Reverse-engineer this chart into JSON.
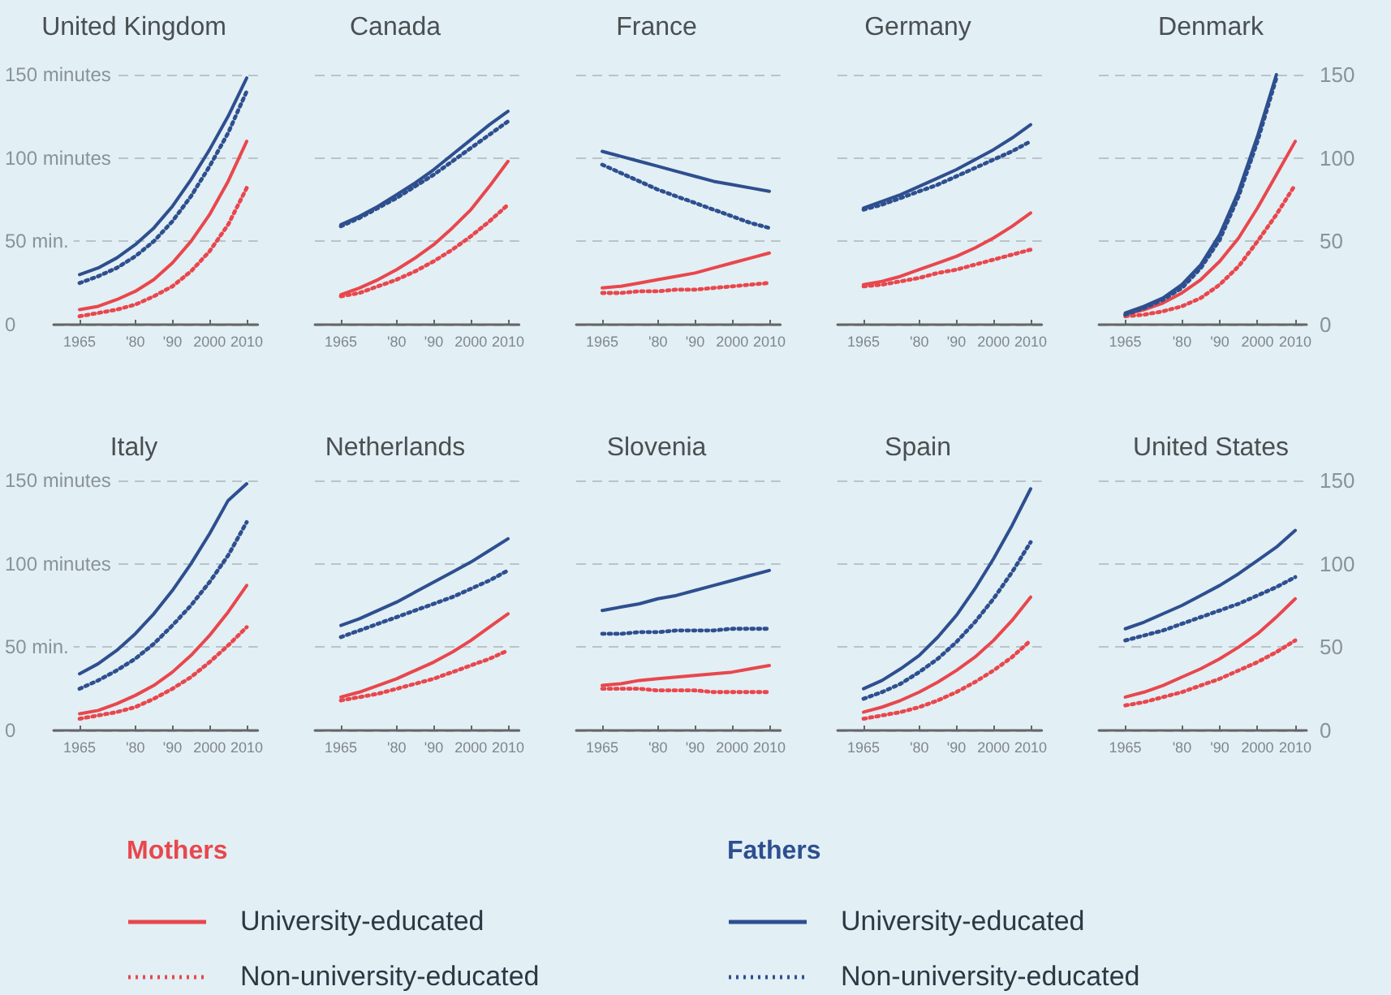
{
  "chart_data": [
    {
      "type": "line",
      "title": "United Kingdom",
      "x": [
        1965,
        1970,
        1975,
        1980,
        1985,
        1990,
        1995,
        2000,
        2005,
        2010
      ],
      "xlim": [
        1958,
        2013
      ],
      "xticks": [
        {
          "value": 1965,
          "label": "1965"
        },
        {
          "value": 1980,
          "label": "'80"
        },
        {
          "value": 1990,
          "label": "'90"
        },
        {
          "value": 2000,
          "label": "2000"
        },
        {
          "value": 2010,
          "label": "2010"
        }
      ],
      "ylim": [
        0,
        150
      ],
      "yticks": [
        0,
        {
          "value": 50,
          "label": "50 min."
        },
        {
          "value": 100,
          "label": "100 minutes"
        },
        {
          "value": 150,
          "label": "150 minutes"
        }
      ],
      "grid": "y",
      "legend": false,
      "marker": "none",
      "series": [
        {
          "color": "#e8474d",
          "line_style": "solid",
          "values": [
            9,
            11,
            15,
            20,
            27,
            37,
            50,
            66,
            86,
            110
          ]
        },
        {
          "color": "#e8474d",
          "line_style": "dotted",
          "values": [
            5,
            7,
            9,
            12,
            17,
            23,
            32,
            44,
            60,
            82
          ]
        },
        {
          "color": "#2e4f8f",
          "line_style": "solid",
          "values": [
            30,
            34,
            40,
            48,
            58,
            71,
            87,
            105,
            125,
            148
          ]
        },
        {
          "color": "#2e4f8f",
          "line_style": "dotted",
          "values": [
            25,
            29,
            34,
            41,
            50,
            62,
            77,
            95,
            115,
            140
          ]
        }
      ]
    },
    {
      "type": "line",
      "title": "Canada",
      "x": [
        1965,
        1970,
        1975,
        1980,
        1985,
        1990,
        1995,
        2000,
        2005,
        2010
      ],
      "xlim": [
        1958,
        2013
      ],
      "xticks": [
        {
          "value": 1965,
          "label": "1965"
        },
        {
          "value": 1980,
          "label": "'80"
        },
        {
          "value": 1990,
          "label": "'90"
        },
        {
          "value": 2000,
          "label": "2000"
        },
        {
          "value": 2010,
          "label": "2010"
        }
      ],
      "ylim": [
        0,
        150
      ],
      "yticks": [
        0,
        50,
        100,
        150
      ],
      "tick_labels": "x",
      "grid": "y",
      "legend": false,
      "marker": "none",
      "series": [
        {
          "color": "#e8474d",
          "line_style": "solid",
          "values": [
            18,
            22,
            27,
            33,
            40,
            48,
            58,
            69,
            83,
            98
          ]
        },
        {
          "color": "#e8474d",
          "line_style": "dotted",
          "values": [
            17,
            19,
            23,
            27,
            32,
            38,
            45,
            53,
            62,
            72
          ]
        },
        {
          "color": "#2e4f8f",
          "line_style": "solid",
          "values": [
            60,
            65,
            71,
            78,
            85,
            93,
            102,
            111,
            120,
            128
          ]
        },
        {
          "color": "#2e4f8f",
          "line_style": "dotted",
          "values": [
            59,
            64,
            70,
            76,
            83,
            90,
            98,
            106,
            114,
            122
          ]
        }
      ]
    },
    {
      "type": "line",
      "title": "France",
      "x": [
        1965,
        1970,
        1975,
        1980,
        1985,
        1990,
        1995,
        2000,
        2005,
        2010
      ],
      "xlim": [
        1958,
        2013
      ],
      "xticks": [
        {
          "value": 1965,
          "label": "1965"
        },
        {
          "value": 1980,
          "label": "'80"
        },
        {
          "value": 1990,
          "label": "'90"
        },
        {
          "value": 2000,
          "label": "2000"
        },
        {
          "value": 2010,
          "label": "2010"
        }
      ],
      "ylim": [
        0,
        150
      ],
      "yticks": [
        0,
        50,
        100,
        150
      ],
      "tick_labels": "x",
      "grid": "y",
      "legend": false,
      "marker": "none",
      "series": [
        {
          "color": "#e8474d",
          "line_style": "solid",
          "values": [
            22,
            23,
            25,
            27,
            29,
            31,
            34,
            37,
            40,
            43
          ]
        },
        {
          "color": "#e8474d",
          "line_style": "dotted",
          "values": [
            19,
            19,
            20,
            20,
            21,
            21,
            22,
            23,
            24,
            25
          ]
        },
        {
          "color": "#2e4f8f",
          "line_style": "solid",
          "values": [
            104,
            101,
            98,
            95,
            92,
            89,
            86,
            84,
            82,
            80
          ]
        },
        {
          "color": "#2e4f8f",
          "line_style": "dotted",
          "values": [
            96,
            91,
            86,
            81,
            77,
            73,
            69,
            65,
            61,
            58
          ]
        }
      ]
    },
    {
      "type": "line",
      "title": "Germany",
      "x": [
        1965,
        1970,
        1975,
        1980,
        1985,
        1990,
        1995,
        2000,
        2005,
        2010
      ],
      "xlim": [
        1958,
        2013
      ],
      "xticks": [
        {
          "value": 1965,
          "label": "1965"
        },
        {
          "value": 1980,
          "label": "'80"
        },
        {
          "value": 1990,
          "label": "'90"
        },
        {
          "value": 2000,
          "label": "2000"
        },
        {
          "value": 2010,
          "label": "2010"
        }
      ],
      "ylim": [
        0,
        150
      ],
      "yticks": [
        0,
        50,
        100,
        150
      ],
      "tick_labels": "x",
      "grid": "y",
      "legend": false,
      "marker": "none",
      "series": [
        {
          "color": "#e8474d",
          "line_style": "solid",
          "values": [
            24,
            26,
            29,
            33,
            37,
            41,
            46,
            52,
            59,
            67
          ]
        },
        {
          "color": "#e8474d",
          "line_style": "dotted",
          "values": [
            23,
            24,
            26,
            28,
            31,
            33,
            36,
            39,
            42,
            45
          ]
        },
        {
          "color": "#2e4f8f",
          "line_style": "solid",
          "values": [
            70,
            74,
            78,
            83,
            88,
            93,
            99,
            105,
            112,
            120
          ]
        },
        {
          "color": "#2e4f8f",
          "line_style": "dotted",
          "values": [
            69,
            72,
            76,
            80,
            84,
            89,
            94,
            99,
            104,
            110
          ]
        }
      ]
    },
    {
      "type": "line",
      "title": "Denmark",
      "x": [
        1965,
        1970,
        1975,
        1980,
        1985,
        1990,
        1995,
        2000,
        2005,
        2010
      ],
      "xlim": [
        1958,
        2013
      ],
      "xticks": [
        {
          "value": 1965,
          "label": "1965"
        },
        {
          "value": 1980,
          "label": "'80"
        },
        {
          "value": 1990,
          "label": "'90"
        },
        {
          "value": 2000,
          "label": "2000"
        },
        {
          "value": 2010,
          "label": "2010"
        }
      ],
      "y2lim": [
        0,
        150
      ],
      "y2ticks": [
        0,
        50,
        100,
        150
      ],
      "grid": "y",
      "legend": false,
      "marker": "none",
      "series": [
        {
          "color": "#e8474d",
          "line_style": "solid",
          "axis": "y2",
          "values": [
            6,
            9,
            13,
            19,
            27,
            38,
            52,
            70,
            90,
            110
          ]
        },
        {
          "color": "#e8474d",
          "line_style": "dotted",
          "axis": "y2",
          "values": [
            5,
            6,
            8,
            11,
            16,
            24,
            35,
            50,
            66,
            84
          ]
        },
        {
          "color": "#2e4f8f",
          "line_style": "solid",
          "axis": "y2",
          "values": [
            7,
            11,
            16,
            24,
            36,
            54,
            80,
            113,
            150,
            null
          ]
        },
        {
          "color": "#2e4f8f",
          "line_style": "dotted",
          "axis": "y2",
          "values": [
            6,
            10,
            15,
            22,
            34,
            51,
            77,
            110,
            148,
            null
          ]
        }
      ]
    },
    {
      "type": "line",
      "title": "Italy",
      "x": [
        1965,
        1970,
        1975,
        1980,
        1985,
        1990,
        1995,
        2000,
        2005,
        2010
      ],
      "xlim": [
        1958,
        2013
      ],
      "xticks": [
        {
          "value": 1965,
          "label": "1965"
        },
        {
          "value": 1980,
          "label": "'80"
        },
        {
          "value": 1990,
          "label": "'90"
        },
        {
          "value": 2000,
          "label": "2000"
        },
        {
          "value": 2010,
          "label": "2010"
        }
      ],
      "ylim": [
        0,
        150
      ],
      "yticks": [
        0,
        {
          "value": 50,
          "label": "50 min."
        },
        {
          "value": 100,
          "label": "100 minutes"
        },
        {
          "value": 150,
          "label": "150 minutes"
        }
      ],
      "grid": "y",
      "legend": false,
      "marker": "none",
      "series": [
        {
          "color": "#e8474d",
          "line_style": "solid",
          "values": [
            10,
            12,
            16,
            21,
            27,
            35,
            45,
            57,
            71,
            87
          ]
        },
        {
          "color": "#e8474d",
          "line_style": "dotted",
          "values": [
            7,
            9,
            11,
            14,
            19,
            25,
            32,
            41,
            51,
            62
          ]
        },
        {
          "color": "#2e4f8f",
          "line_style": "solid",
          "values": [
            34,
            40,
            48,
            58,
            70,
            84,
            100,
            118,
            138,
            148
          ]
        },
        {
          "color": "#2e4f8f",
          "line_style": "dotted",
          "values": [
            25,
            30,
            36,
            43,
            52,
            63,
            75,
            89,
            105,
            125
          ]
        }
      ]
    },
    {
      "type": "line",
      "title": "Netherlands",
      "x": [
        1965,
        1970,
        1975,
        1980,
        1985,
        1990,
        1995,
        2000,
        2005,
        2010
      ],
      "xlim": [
        1958,
        2013
      ],
      "xticks": [
        {
          "value": 1965,
          "label": "1965"
        },
        {
          "value": 1980,
          "label": "'80"
        },
        {
          "value": 1990,
          "label": "'90"
        },
        {
          "value": 2000,
          "label": "2000"
        },
        {
          "value": 2010,
          "label": "2010"
        }
      ],
      "ylim": [
        0,
        150
      ],
      "yticks": [
        0,
        50,
        100,
        150
      ],
      "tick_labels": "x",
      "grid": "y",
      "legend": false,
      "marker": "none",
      "series": [
        {
          "color": "#e8474d",
          "line_style": "solid",
          "values": [
            20,
            23,
            27,
            31,
            36,
            41,
            47,
            54,
            62,
            70
          ]
        },
        {
          "color": "#e8474d",
          "line_style": "dotted",
          "values": [
            18,
            20,
            22,
            25,
            28,
            31,
            35,
            39,
            43,
            48
          ]
        },
        {
          "color": "#2e4f8f",
          "line_style": "solid",
          "values": [
            63,
            67,
            72,
            77,
            83,
            89,
            95,
            101,
            108,
            115
          ]
        },
        {
          "color": "#2e4f8f",
          "line_style": "dotted",
          "values": [
            56,
            60,
            64,
            68,
            72,
            76,
            80,
            85,
            90,
            96
          ]
        }
      ]
    },
    {
      "type": "line",
      "title": "Slovenia",
      "x": [
        1965,
        1970,
        1975,
        1980,
        1985,
        1990,
        1995,
        2000,
        2005,
        2010
      ],
      "xlim": [
        1958,
        2013
      ],
      "xticks": [
        {
          "value": 1965,
          "label": "1965"
        },
        {
          "value": 1980,
          "label": "'80"
        },
        {
          "value": 1990,
          "label": "'90"
        },
        {
          "value": 2000,
          "label": "2000"
        },
        {
          "value": 2010,
          "label": "2010"
        }
      ],
      "ylim": [
        0,
        150
      ],
      "yticks": [
        0,
        50,
        100,
        150
      ],
      "tick_labels": "x",
      "grid": "y",
      "legend": false,
      "marker": "none",
      "series": [
        {
          "color": "#e8474d",
          "line_style": "solid",
          "values": [
            27,
            28,
            30,
            31,
            32,
            33,
            34,
            35,
            37,
            39
          ]
        },
        {
          "color": "#e8474d",
          "line_style": "dotted",
          "values": [
            25,
            25,
            25,
            24,
            24,
            24,
            23,
            23,
            23,
            23
          ]
        },
        {
          "color": "#2e4f8f",
          "line_style": "solid",
          "values": [
            72,
            74,
            76,
            79,
            81,
            84,
            87,
            90,
            93,
            96
          ]
        },
        {
          "color": "#2e4f8f",
          "line_style": "dotted",
          "values": [
            58,
            58,
            59,
            59,
            60,
            60,
            60,
            61,
            61,
            61
          ]
        }
      ]
    },
    {
      "type": "line",
      "title": "Spain",
      "x": [
        1965,
        1970,
        1975,
        1980,
        1985,
        1990,
        1995,
        2000,
        2005,
        2010
      ],
      "xlim": [
        1958,
        2013
      ],
      "xticks": [
        {
          "value": 1965,
          "label": "1965"
        },
        {
          "value": 1980,
          "label": "'80"
        },
        {
          "value": 1990,
          "label": "'90"
        },
        {
          "value": 2000,
          "label": "2000"
        },
        {
          "value": 2010,
          "label": "2010"
        }
      ],
      "ylim": [
        0,
        150
      ],
      "yticks": [
        0,
        50,
        100,
        150
      ],
      "tick_labels": "x",
      "grid": "y",
      "legend": false,
      "marker": "none",
      "series": [
        {
          "color": "#e8474d",
          "line_style": "solid",
          "values": [
            11,
            14,
            18,
            23,
            29,
            36,
            44,
            54,
            66,
            80
          ]
        },
        {
          "color": "#e8474d",
          "line_style": "dotted",
          "values": [
            7,
            9,
            11,
            14,
            18,
            23,
            29,
            36,
            44,
            54
          ]
        },
        {
          "color": "#2e4f8f",
          "line_style": "solid",
          "values": [
            25,
            30,
            37,
            45,
            56,
            69,
            85,
            103,
            123,
            145
          ]
        },
        {
          "color": "#2e4f8f",
          "line_style": "dotted",
          "values": [
            19,
            23,
            28,
            35,
            43,
            53,
            65,
            79,
            95,
            113
          ]
        }
      ]
    },
    {
      "type": "line",
      "title": "United States",
      "x": [
        1965,
        1970,
        1975,
        1980,
        1985,
        1990,
        1995,
        2000,
        2005,
        2010
      ],
      "xlim": [
        1958,
        2013
      ],
      "xticks": [
        {
          "value": 1965,
          "label": "1965"
        },
        {
          "value": 1980,
          "label": "'80"
        },
        {
          "value": 1990,
          "label": "'90"
        },
        {
          "value": 2000,
          "label": "2000"
        },
        {
          "value": 2010,
          "label": "2010"
        }
      ],
      "y2lim": [
        0,
        150
      ],
      "y2ticks": [
        0,
        50,
        100,
        150
      ],
      "grid": "y",
      "legend": "bottom",
      "marker": "none",
      "annotations": [
        "Mothers",
        "Fathers"
      ],
      "series": [
        {
          "name": "University-educated",
          "color": "#e8474d",
          "line_style": "solid",
          "axis": "y2",
          "values": [
            20,
            23,
            27,
            32,
            37,
            43,
            50,
            58,
            68,
            79
          ]
        },
        {
          "name": "Non-university-educated",
          "color": "#e8474d",
          "line_style": "dotted",
          "axis": "y2",
          "values": [
            15,
            17,
            20,
            23,
            27,
            31,
            36,
            41,
            47,
            54
          ]
        },
        {
          "name": "University-educated",
          "color": "#2e4f8f",
          "line_style": "solid",
          "axis": "y2",
          "values": [
            61,
            65,
            70,
            75,
            81,
            87,
            94,
            102,
            110,
            120
          ]
        },
        {
          "name": "Non-university-educated",
          "color": "#2e4f8f",
          "line_style": "dotted",
          "axis": "y2",
          "values": [
            54,
            57,
            60,
            64,
            68,
            72,
            76,
            81,
            86,
            92
          ]
        }
      ]
    }
  ]
}
